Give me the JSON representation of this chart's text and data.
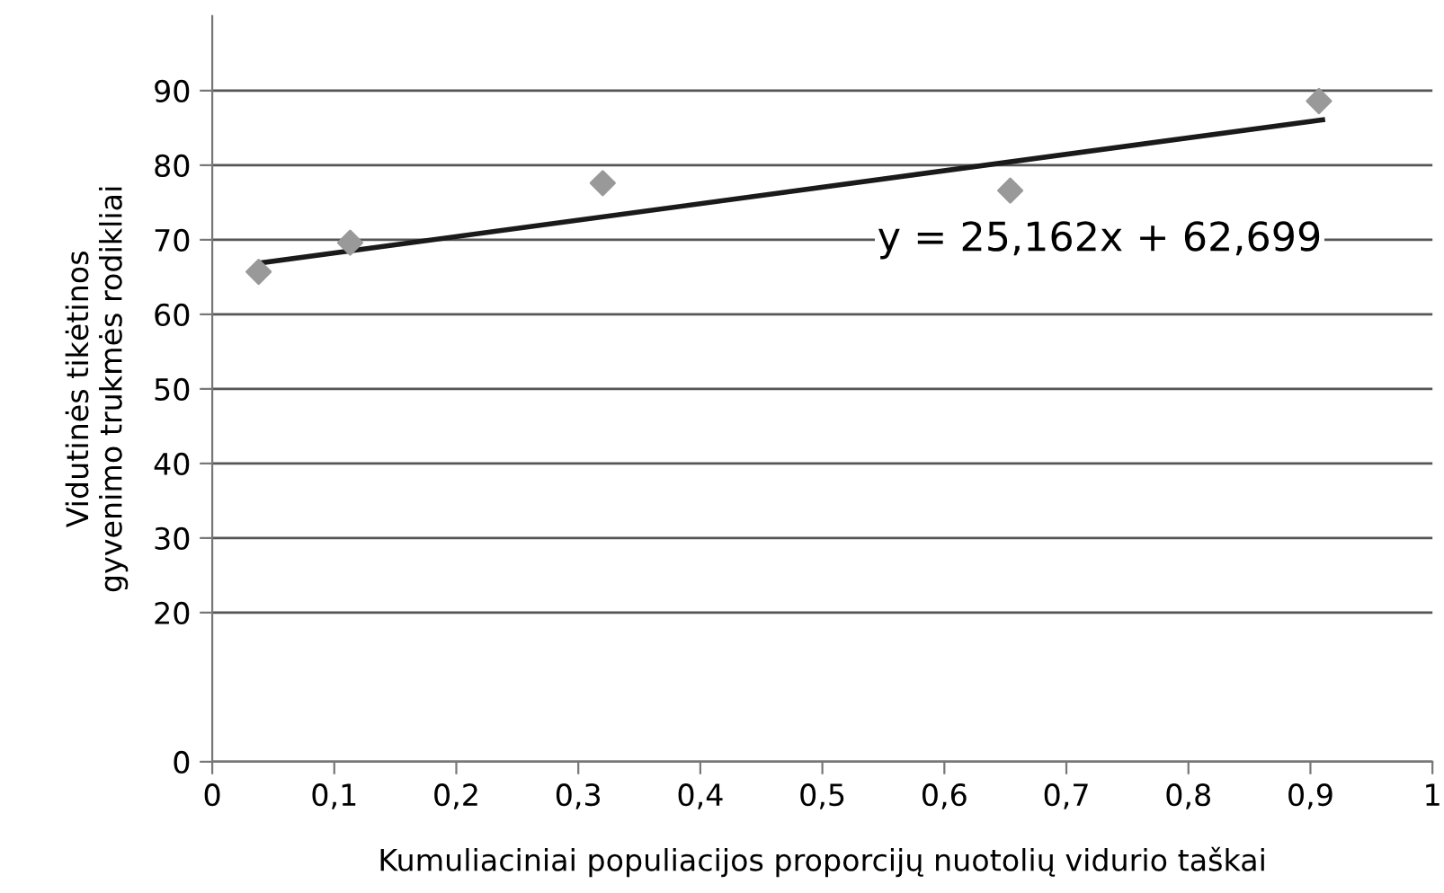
{
  "chart_data": {
    "type": "scatter",
    "xlabel": "Kumuliaciniai populiacijos proporcijų nuotolių vidurio taškai",
    "ylabel": "Vidutinės tikėtinos\ngyvenimo trukmės rodikliai",
    "series": [
      {
        "color": "#999999",
        "marker": "diamond",
        "x": [
          0.038,
          0.113,
          0.32,
          0.654,
          0.907
        ],
        "values": [
          65.7,
          69.6,
          77.6,
          76.6,
          88.6
        ]
      },
      {
        "type": "line",
        "color": "#1a1a1a",
        "marker": "none",
        "line_style": "solid",
        "x": [
          0.04,
          0.91
        ],
        "values": [
          66.9,
          86.1
        ]
      }
    ],
    "annotations": [
      "y = 25,162x + 62,699"
    ],
    "xlim": [
      0,
      1
    ],
    "xticks": [
      0,
      {
        "value": 0.1,
        "label": "0,1"
      },
      {
        "value": 0.2,
        "label": "0,2"
      },
      {
        "value": 0.3,
        "label": "0,3"
      },
      {
        "value": 0.4,
        "label": "0,4"
      },
      {
        "value": 0.5,
        "label": "0,5"
      },
      {
        "value": 0.6,
        "label": "0,6"
      },
      {
        "value": 0.7,
        "label": "0,7"
      },
      {
        "value": 0.8,
        "label": "0,8"
      },
      {
        "value": 0.9,
        "label": "0,9"
      },
      1
    ],
    "ylim": [
      0,
      100
    ],
    "yticks": [
      0,
      20,
      30,
      40,
      50,
      60,
      70,
      80,
      90
    ],
    "grid": "y",
    "legend": false
  }
}
